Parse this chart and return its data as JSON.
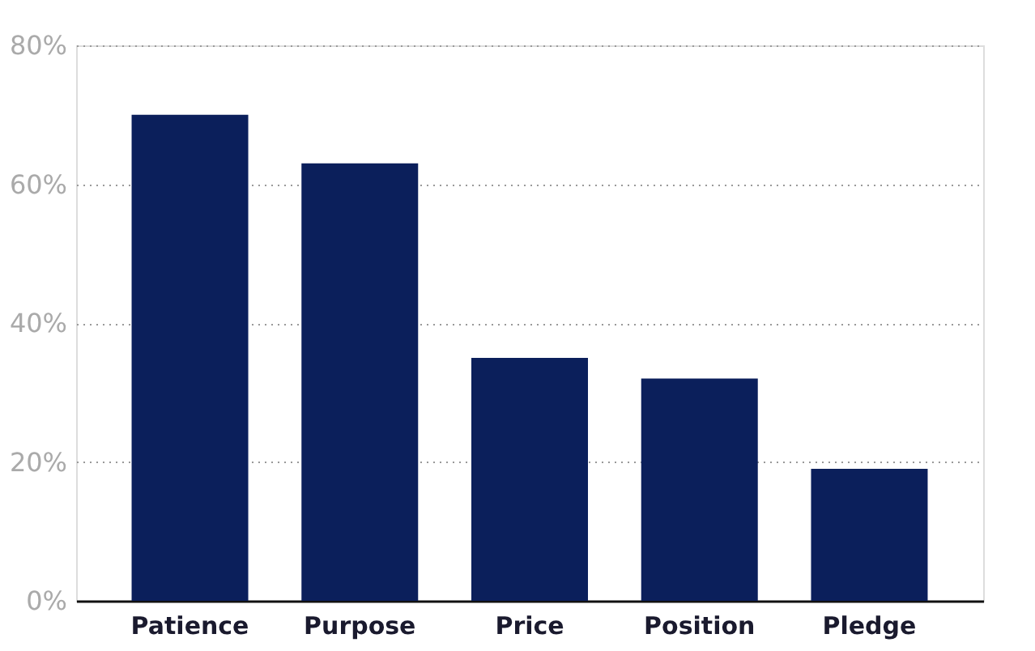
{
  "chart_data": {
    "type": "bar",
    "categories": [
      "Patience",
      "Purpose",
      "Price",
      "Position",
      "Pledge"
    ],
    "values": [
      70,
      63,
      35,
      32,
      19
    ],
    "color": "#0b1f5b",
    "ylim": [
      0,
      80
    ],
    "yticks": [
      {
        "value": 0,
        "label": "0%"
      },
      {
        "value": 20,
        "label": "20%"
      },
      {
        "value": 40,
        "label": "40%"
      },
      {
        "value": 60,
        "label": "60%"
      },
      {
        "value": 80,
        "label": "80%"
      }
    ],
    "grid": "y"
  }
}
